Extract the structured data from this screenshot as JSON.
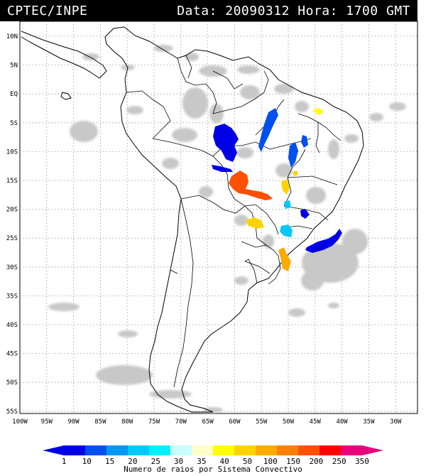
{
  "header": {
    "agency": "CPTEC/INPE",
    "datetime": "Data: 20090312 Hora: 1700 GMT"
  },
  "map": {
    "lat_labels": [
      "10N",
      "5N",
      "EQ",
      "5S",
      "10S",
      "15S",
      "20S",
      "25S",
      "30S",
      "35S",
      "40S",
      "45S",
      "50S",
      "55S"
    ],
    "lon_labels": [
      "100W",
      "95W",
      "90W",
      "85W",
      "80W",
      "75W",
      "70W",
      "65W",
      "60W",
      "55W",
      "50W",
      "45W",
      "40W",
      "35W",
      "30W"
    ]
  },
  "legend": {
    "title": "Numero de raios por Sistema Convectivo",
    "labels": [
      "1",
      "10",
      "15",
      "20",
      "25",
      "30",
      "35",
      "40",
      "50",
      "100",
      "150",
      "200",
      "250",
      "350"
    ],
    "colors": [
      "#0000e6",
      "#0050f0",
      "#0096f5",
      "#00c8fa",
      "#00f0ff",
      "#c8ffff",
      "#ffffc8",
      "#ffff00",
      "#ffd200",
      "#ffaa00",
      "#ff8000",
      "#ff5000",
      "#ff0000",
      "#e6007a"
    ]
  }
}
